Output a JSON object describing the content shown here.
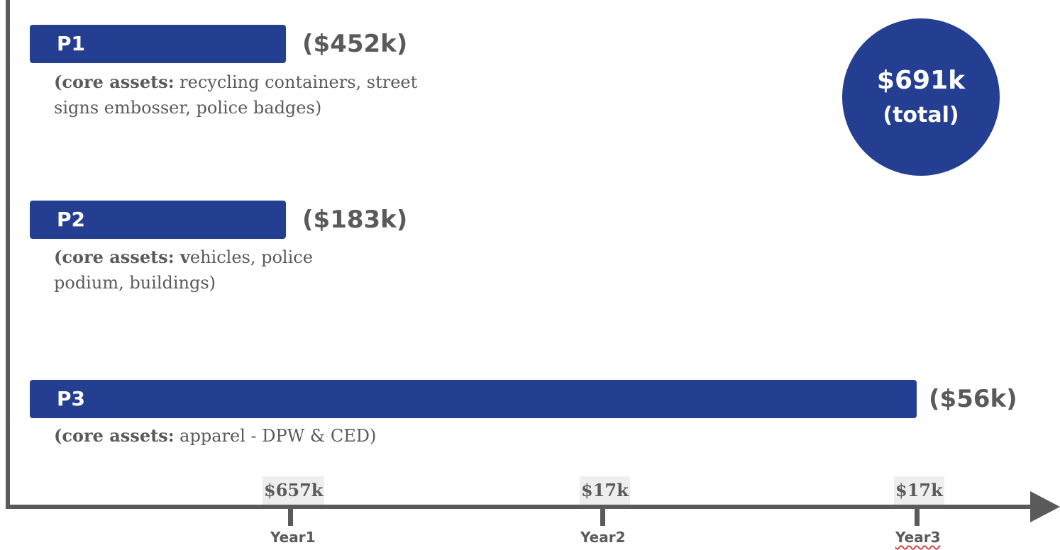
{
  "phases": [
    {
      "label": "P1",
      "amount": "($452k)",
      "assets_prefix": "(core assets:",
      "assets_text": " recycling containers, street signs embosser, police badges)"
    },
    {
      "label": "P2",
      "amount": "($183k)",
      "assets_prefix": "(core assets: v",
      "assets_text": "ehicles, police podium, buildings)"
    },
    {
      "label": "P3",
      "amount": "($56k)",
      "assets_prefix": "(core assets:",
      "assets_text": " apparel - DPW & CED)"
    }
  ],
  "total": {
    "amount": "$691k",
    "label": "(total)"
  },
  "timeline": [
    {
      "year": "Year1",
      "amount": "$657k"
    },
    {
      "year": "Year2",
      "amount": "$17k"
    },
    {
      "year": "Year3",
      "amount": "$17k"
    }
  ],
  "colors": {
    "bar": "#243f91",
    "axis": "#5a5a5a",
    "text": "#5a5a5a"
  }
}
